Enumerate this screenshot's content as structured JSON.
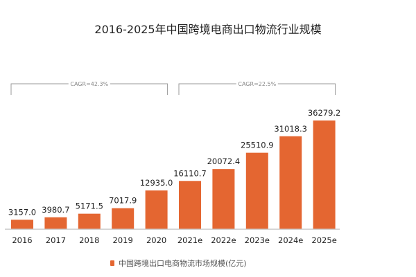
{
  "chart_data": {
    "type": "bar",
    "title": "2016-2025年中国跨境电商出口物流行业规模",
    "categories": [
      "2016",
      "2017",
      "2018",
      "2019",
      "2020",
      "2021e",
      "2022e",
      "2023e",
      "2024e",
      "2025e"
    ],
    "series": [
      {
        "name": "中国跨境出口电商物流市场规模(亿元)",
        "values": [
          3157.0,
          3980.7,
          5171.5,
          7017.9,
          12935.0,
          16110.7,
          20072.4,
          25510.9,
          31018.3,
          36279.2
        ]
      }
    ],
    "value_labels": [
      "3157.0",
      "3980.7",
      "5171.5",
      "7017.9",
      "12935.0",
      "16110.7",
      "20072.4",
      "25510.9",
      "31018.3",
      "36279.2"
    ],
    "annotations": [
      {
        "text": "CAGR=42.3%",
        "from": "2016",
        "to": "2020"
      },
      {
        "text": "CAGR=22.5%",
        "from": "2021e",
        "to": "2025e"
      }
    ],
    "ylim": [
      0,
      36279.2
    ],
    "grid": false,
    "legend": "bottom",
    "color": "#E46631"
  }
}
